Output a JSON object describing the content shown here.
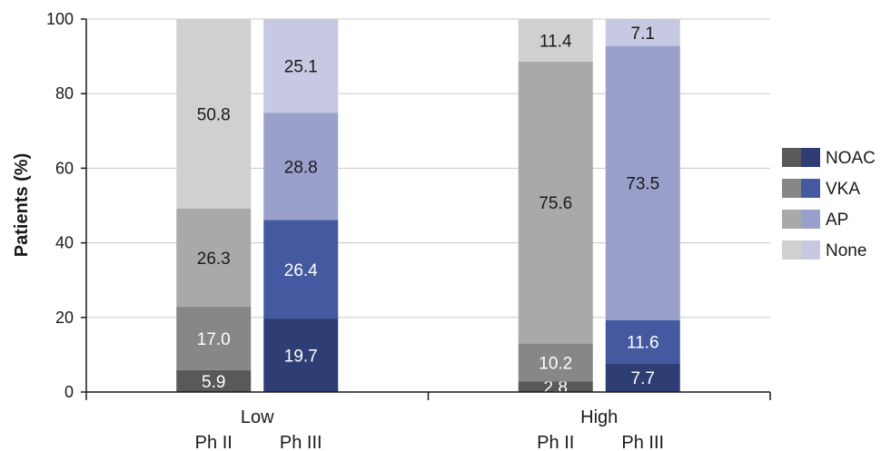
{
  "chart_data": {
    "type": "bar",
    "stacked": true,
    "ylabel": "Patients (%)",
    "ylim": [
      0,
      100
    ],
    "yticks": [
      0,
      20,
      40,
      60,
      80,
      100
    ],
    "grid": true,
    "legend_position": "right",
    "groups": [
      {
        "label": "Low",
        "bars": [
          {
            "label": "Ph II",
            "palette": "gray",
            "values": {
              "NOAC": 5.9,
              "VKA": 17.0,
              "AP": 26.3,
              "None": 50.8
            }
          },
          {
            "label": "Ph III",
            "palette": "blue",
            "values": {
              "NOAC": 19.7,
              "VKA": 26.4,
              "AP": 28.8,
              "None": 25.1
            }
          }
        ]
      },
      {
        "label": "High",
        "bars": [
          {
            "label": "Ph II",
            "palette": "gray",
            "values": {
              "NOAC": 2.8,
              "VKA": 10.2,
              "AP": 75.6,
              "None": 11.4
            }
          },
          {
            "label": "Ph III",
            "palette": "blue",
            "values": {
              "NOAC": 7.7,
              "VKA": 11.6,
              "AP": 73.5,
              "None": 7.1
            }
          }
        ]
      }
    ],
    "series": [
      {
        "name": "NOAC",
        "gray_color": "#595959",
        "blue_color": "#2e3e74"
      },
      {
        "name": "VKA",
        "gray_color": "#878787",
        "blue_color": "#4459a0"
      },
      {
        "name": "AP",
        "gray_color": "#a9a9a9",
        "blue_color": "#9aa0cc"
      },
      {
        "name": "None",
        "gray_color": "#d0d0d0",
        "blue_color": "#c7c9e3"
      }
    ],
    "label_colors": {
      "dark": "#ffffff",
      "light": "#1a1a1a"
    }
  }
}
